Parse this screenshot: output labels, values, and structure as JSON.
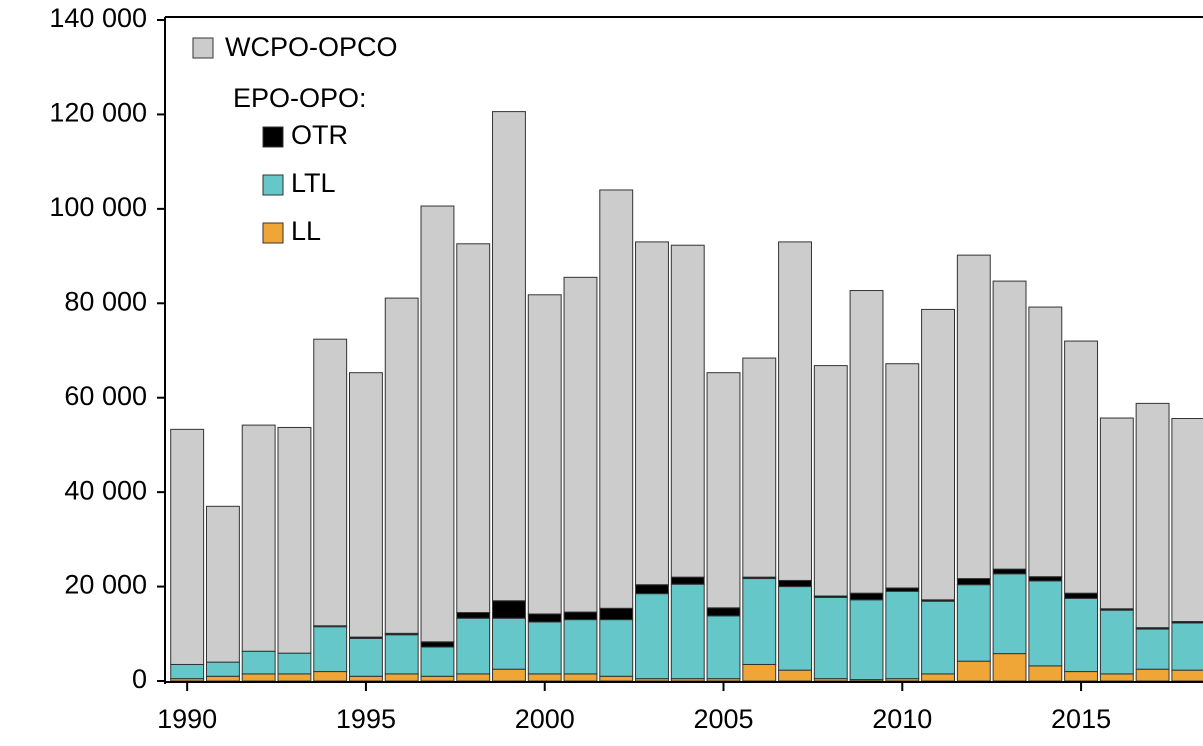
{
  "chart_data": {
    "type": "stacked_bar",
    "x": [
      1990,
      1991,
      1992,
      1993,
      1994,
      1995,
      1996,
      1997,
      1998,
      1999,
      2000,
      2001,
      2002,
      2003,
      2004,
      2005,
      2006,
      2007,
      2008,
      2009,
      2010,
      2011,
      2012,
      2013,
      2014,
      2015,
      2016,
      2017,
      2018
    ],
    "series": [
      {
        "name": "LL",
        "color": "#f0a637",
        "values": [
          500,
          1000,
          1500,
          1500,
          2000,
          1000,
          1500,
          1000,
          1500,
          2500,
          1500,
          1500,
          1000,
          500,
          500,
          500,
          3500,
          2300,
          500,
          300,
          500,
          1500,
          4200,
          5800,
          3200,
          2000,
          1500,
          2500,
          2300
        ]
      },
      {
        "name": "LTL",
        "color": "#66c7c9",
        "values": [
          3000,
          3000,
          4800,
          4400,
          9500,
          8000,
          8300,
          6200,
          11800,
          10800,
          11000,
          11500,
          12000,
          18000,
          20000,
          13300,
          18200,
          17700,
          17200,
          16900,
          18500,
          15400,
          16200,
          16900,
          18000,
          15500,
          13500,
          8500,
          10000
        ]
      },
      {
        "name": "OTR",
        "color": "#000000",
        "values": [
          0,
          0,
          0,
          0,
          200,
          300,
          300,
          1100,
          1200,
          3700,
          1700,
          1600,
          2400,
          1900,
          1500,
          1700,
          300,
          1300,
          300,
          1400,
          700,
          300,
          1300,
          1000,
          900,
          1100,
          300,
          300,
          300
        ]
      },
      {
        "name": "WCPO-OPCO",
        "color": "#cccccc",
        "values": [
          49800,
          33000,
          47900,
          47800,
          60700,
          56000,
          71000,
          92300,
          78100,
          103600,
          67600,
          70900,
          88600,
          72600,
          70300,
          49800,
          46400,
          71700,
          48800,
          64100,
          47500,
          61500,
          68500,
          61000,
          57100,
          53400,
          40400,
          47500,
          43000
        ]
      }
    ],
    "legend_group_label": "EPO-OPO:",
    "xlim": [
      1989.38,
      2018.41
    ],
    "xticks": [
      1990,
      1995,
      2000,
      2005,
      2010,
      2015
    ],
    "ylim": [
      0,
      140000
    ],
    "yticks": [
      0,
      {
        "value": 20000,
        "label": "20 000"
      },
      {
        "value": 40000,
        "label": "40 000"
      },
      {
        "value": 60000,
        "label": "60 000"
      },
      {
        "value": 80000,
        "label": "80 000"
      },
      {
        "value": 100000,
        "label": "100 000"
      },
      {
        "value": 120000,
        "label": "120 000"
      },
      {
        "value": 140000,
        "label": "140 000"
      }
    ],
    "legend": "upper left"
  }
}
